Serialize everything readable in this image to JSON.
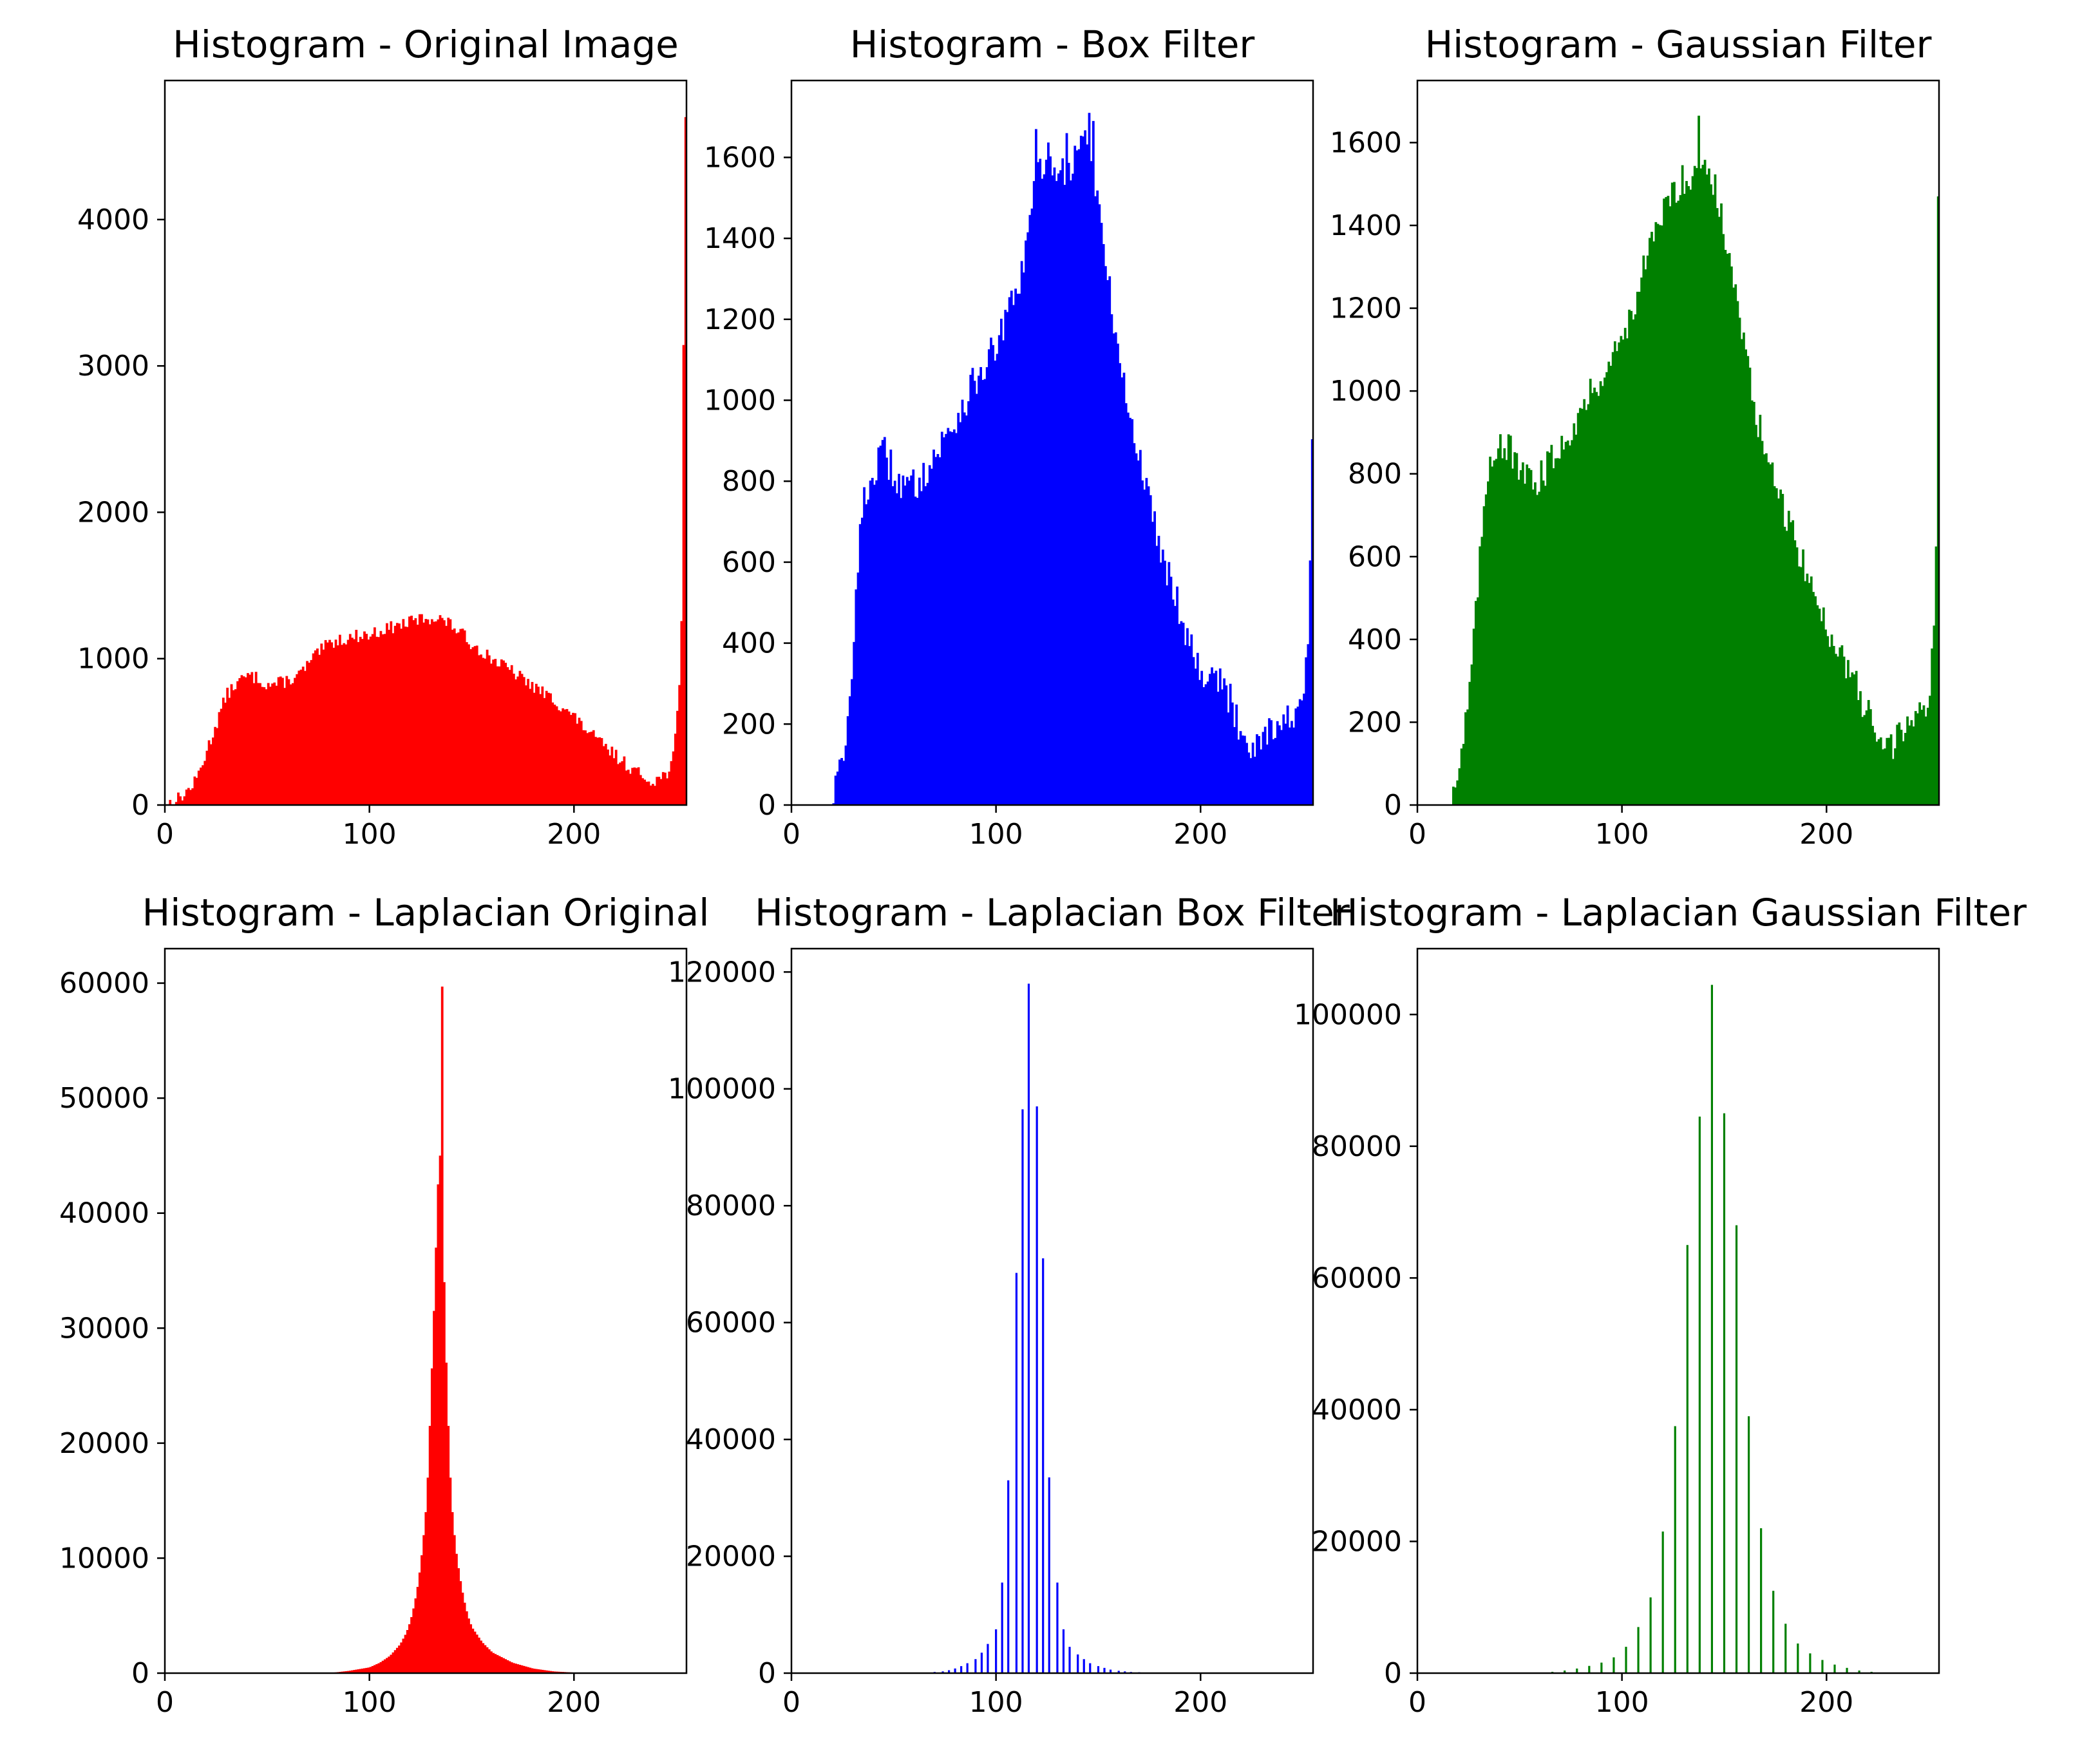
{
  "chart_data": [
    {
      "type": "bar",
      "title": "Histogram - Original Image",
      "color": "#ff0000",
      "xlim": [
        0,
        255
      ],
      "ylim": [
        0,
        4950
      ],
      "xticks": [
        0,
        100,
        200
      ],
      "yticks": [
        0,
        1000,
        2000,
        3000,
        4000
      ],
      "grid": false,
      "profile_x": [
        0,
        5,
        10,
        15,
        20,
        25,
        30,
        35,
        40,
        45,
        50,
        55,
        60,
        65,
        70,
        75,
        80,
        85,
        90,
        95,
        100,
        105,
        110,
        115,
        120,
        125,
        130,
        135,
        140,
        145,
        150,
        160,
        170,
        180,
        190,
        200,
        210,
        220,
        230,
        235,
        240,
        245,
        248,
        250,
        252,
        253,
        254,
        255
      ],
      "profile_y": [
        0,
        30,
        80,
        160,
        350,
        550,
        750,
        830,
        880,
        870,
        820,
        830,
        850,
        880,
        960,
        1040,
        1100,
        1130,
        1140,
        1160,
        1160,
        1190,
        1210,
        1230,
        1250,
        1270,
        1280,
        1270,
        1230,
        1170,
        1100,
        1000,
        910,
        810,
        720,
        600,
        460,
        340,
        230,
        180,
        170,
        210,
        300,
        500,
        900,
        1600,
        4700,
        4700
      ],
      "peaks": [
        {
          "x": 254,
          "y": 4700
        }
      ],
      "jitter": 45
    },
    {
      "type": "bar",
      "title": "Histogram - Box Filter",
      "color": "#0000ff",
      "xlim": [
        0,
        255
      ],
      "ylim": [
        0,
        1790
      ],
      "xticks": [
        0,
        100,
        200
      ],
      "yticks": [
        0,
        200,
        400,
        600,
        800,
        1000,
        1200,
        1400,
        1600
      ],
      "grid": false,
      "profile_x": [
        0,
        18,
        20,
        25,
        28,
        30,
        33,
        36,
        40,
        45,
        50,
        55,
        60,
        70,
        80,
        90,
        100,
        105,
        110,
        115,
        120,
        125,
        130,
        135,
        140,
        145,
        150,
        155,
        160,
        165,
        170,
        175,
        180,
        185,
        190,
        195,
        200,
        205,
        210,
        215,
        220,
        225,
        230,
        235,
        240,
        245,
        250,
        253,
        255
      ],
      "profile_y": [
        0,
        0,
        30,
        100,
        200,
        400,
        650,
        760,
        820,
        870,
        820,
        780,
        790,
        860,
        950,
        1050,
        1130,
        1200,
        1260,
        1380,
        1560,
        1600,
        1580,
        1560,
        1620,
        1660,
        1480,
        1280,
        1120,
        960,
        860,
        750,
        650,
        560,
        480,
        400,
        330,
        330,
        300,
        250,
        180,
        150,
        170,
        200,
        200,
        220,
        240,
        450,
        1000
      ],
      "peaks": [
        {
          "x": 145,
          "y": 1710
        },
        {
          "x": 147,
          "y": 1690
        },
        {
          "x": 119,
          "y": 1670
        },
        {
          "x": 134,
          "y": 1660
        }
      ],
      "jitter": 45
    },
    {
      "type": "bar",
      "title": "Histogram - Gaussian Filter",
      "color": "#008000",
      "xlim": [
        0,
        255
      ],
      "ylim": [
        0,
        1750
      ],
      "xticks": [
        0,
        100,
        200
      ],
      "yticks": [
        0,
        200,
        400,
        600,
        800,
        1000,
        1200,
        1400,
        1600
      ],
      "grid": false,
      "profile_x": [
        0,
        15,
        20,
        25,
        30,
        33,
        36,
        40,
        45,
        50,
        55,
        60,
        70,
        80,
        90,
        100,
        105,
        110,
        115,
        120,
        125,
        130,
        135,
        140,
        145,
        150,
        155,
        160,
        165,
        170,
        175,
        180,
        185,
        190,
        195,
        200,
        205,
        210,
        215,
        220,
        225,
        230,
        235,
        240,
        245,
        250,
        253,
        255
      ],
      "profile_y": [
        0,
        0,
        80,
        250,
        550,
        760,
        850,
        880,
        860,
        800,
        780,
        790,
        870,
        950,
        1040,
        1120,
        1200,
        1280,
        1360,
        1430,
        1480,
        1510,
        1530,
        1560,
        1500,
        1380,
        1250,
        1100,
        950,
        860,
        760,
        700,
        640,
        560,
        490,
        430,
        390,
        340,
        280,
        220,
        160,
        140,
        160,
        190,
        220,
        260,
        480,
        1000
      ],
      "peaks": [
        {
          "x": 137,
          "y": 1665
        },
        {
          "x": 254,
          "y": 1470
        }
      ],
      "jitter": 40
    },
    {
      "type": "bar",
      "title": "Histogram - Laplacian Original",
      "color": "#ff0000",
      "xlim": [
        0,
        255
      ],
      "ylim": [
        0,
        63000
      ],
      "xticks": [
        0,
        100,
        200
      ],
      "yticks": [
        0,
        10000,
        20000,
        30000,
        40000,
        50000,
        60000
      ],
      "grid": false,
      "profile_x": [
        0,
        80,
        90,
        100,
        105,
        110,
        115,
        118,
        120,
        122,
        124,
        126,
        128,
        129,
        130,
        131,
        132,
        133,
        134,
        135,
        136,
        137,
        138,
        139,
        140,
        142,
        144,
        146,
        148,
        150,
        155,
        160,
        170,
        180,
        190,
        200,
        210,
        255
      ],
      "profile_y": [
        0,
        0,
        200,
        500,
        900,
        1500,
        2500,
        3500,
        4500,
        6000,
        8000,
        11000,
        15000,
        19000,
        24000,
        29000,
        34000,
        40000,
        45000,
        45000,
        38000,
        30000,
        24000,
        19000,
        15000,
        11000,
        8500,
        6500,
        5000,
        4000,
        2700,
        1800,
        900,
        400,
        150,
        50,
        10,
        0
      ],
      "peaks": [
        {
          "x": 135,
          "y": 59700
        }
      ],
      "jitter": 0
    },
    {
      "type": "bar",
      "title": "Histogram - Laplacian Box Filter",
      "color": "#0000ff",
      "xlim": [
        0,
        255
      ],
      "ylim": [
        0,
        124000
      ],
      "xticks": [
        0,
        100,
        200
      ],
      "yticks": [
        0,
        20000,
        40000,
        60000,
        80000,
        100000,
        120000
      ],
      "grid": false,
      "spikes": [
        [
          66,
          100
        ],
        [
          70,
          200
        ],
        [
          74,
          300
        ],
        [
          77,
          500
        ],
        [
          80,
          800
        ],
        [
          83,
          1200
        ],
        [
          86,
          1700
        ],
        [
          90,
          2400
        ],
        [
          93,
          3500
        ],
        [
          96,
          5000
        ],
        [
          100,
          7500
        ],
        [
          103,
          15500
        ],
        [
          106,
          33000
        ],
        [
          110,
          68500
        ],
        [
          113,
          96500
        ],
        [
          116,
          118000
        ],
        [
          120,
          97000
        ],
        [
          123,
          71000
        ],
        [
          126,
          33500
        ],
        [
          130,
          15500
        ],
        [
          133,
          7500
        ],
        [
          136,
          4500
        ],
        [
          140,
          3200
        ],
        [
          143,
          2400
        ],
        [
          146,
          1700
        ],
        [
          150,
          1200
        ],
        [
          153,
          900
        ],
        [
          156,
          600
        ],
        [
          160,
          400
        ],
        [
          163,
          300
        ],
        [
          166,
          200
        ],
        [
          170,
          150
        ],
        [
          173,
          100
        ],
        [
          176,
          80
        ]
      ]
    },
    {
      "type": "bar",
      "title": "Histogram - Laplacian Gaussian Filter",
      "color": "#008000",
      "xlim": [
        0,
        255
      ],
      "ylim": [
        0,
        110000
      ],
      "xticks": [
        0,
        100,
        200
      ],
      "yticks": [
        0,
        20000,
        40000,
        60000,
        80000,
        100000
      ],
      "grid": false,
      "spikes": [
        [
          66,
          200
        ],
        [
          72,
          400
        ],
        [
          78,
          700
        ],
        [
          84,
          1100
        ],
        [
          90,
          1600
        ],
        [
          96,
          2400
        ],
        [
          102,
          4000
        ],
        [
          108,
          7000
        ],
        [
          114,
          11500
        ],
        [
          120,
          21500
        ],
        [
          126,
          37500
        ],
        [
          132,
          65000
        ],
        [
          138,
          84500
        ],
        [
          144,
          104500
        ],
        [
          150,
          85000
        ],
        [
          156,
          68000
        ],
        [
          162,
          39000
        ],
        [
          168,
          22000
        ],
        [
          174,
          12500
        ],
        [
          180,
          7500
        ],
        [
          186,
          4500
        ],
        [
          192,
          3000
        ],
        [
          198,
          2000
        ],
        [
          204,
          1300
        ],
        [
          210,
          800
        ],
        [
          216,
          400
        ],
        [
          222,
          200
        ]
      ]
    }
  ]
}
